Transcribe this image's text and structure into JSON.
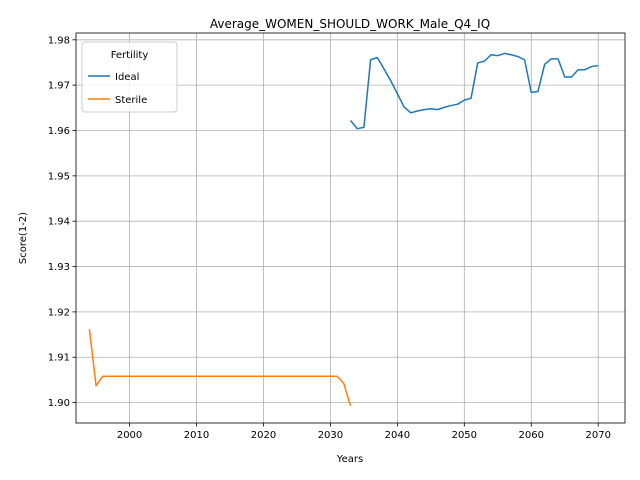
{
  "chart_data": {
    "type": "line",
    "title": "Average_WOMEN_SHOULD_WORK_Male_Q4_IQ",
    "xlabel": "Years",
    "ylabel": "Score(1-2)",
    "xlim": [
      1992,
      2074
    ],
    "ylim": [
      1.8955,
      1.9815
    ],
    "x_ticks": [
      2000,
      2010,
      2020,
      2030,
      2040,
      2050,
      2060,
      2070
    ],
    "y_ticks": [
      1.9,
      1.91,
      1.92,
      1.93,
      1.94,
      1.95,
      1.96,
      1.97,
      1.98
    ],
    "y_tick_labels": [
      "1.90",
      "1.91",
      "1.92",
      "1.93",
      "1.94",
      "1.95",
      "1.96",
      "1.97",
      "1.98"
    ],
    "grid": true,
    "legend": {
      "title": "Fertility",
      "placement": "top-left"
    },
    "series": [
      {
        "name": "Ideal",
        "color": "#1f77b4",
        "x": [
          2033,
          2034,
          2035,
          2036,
          2037,
          2038,
          2039,
          2040,
          2041,
          2042,
          2043,
          2044,
          2045,
          2046,
          2047,
          2048,
          2049,
          2050,
          2051,
          2052,
          2053,
          2054,
          2055,
          2056,
          2057,
          2058,
          2059,
          2060,
          2061,
          2062,
          2063,
          2064,
          2065,
          2066,
          2067,
          2068,
          2069,
          2070
        ],
        "y": [
          1.9622,
          1.9604,
          1.9607,
          1.9756,
          1.9761,
          1.9736,
          1.971,
          1.9681,
          1.9652,
          1.9639,
          1.9643,
          1.9646,
          1.9648,
          1.9646,
          1.9651,
          1.9655,
          1.9658,
          1.9667,
          1.9671,
          1.9749,
          1.9753,
          1.9767,
          1.9765,
          1.977,
          1.9767,
          1.9763,
          1.9756,
          1.9684,
          1.9686,
          1.9746,
          1.9758,
          1.9758,
          1.9718,
          1.9718,
          1.9734,
          1.9734,
          1.9741,
          1.9743
        ]
      },
      {
        "name": "Sterile",
        "color": "#ff7f0e",
        "x": [
          1994,
          1995,
          1996,
          1997,
          2000,
          2010,
          2020,
          2030,
          2031,
          2032,
          2033
        ],
        "y": [
          1.9162,
          1.9037,
          1.9058,
          1.9058,
          1.9058,
          1.9058,
          1.9058,
          1.9058,
          1.9058,
          1.9042,
          1.8993
        ]
      }
    ]
  }
}
